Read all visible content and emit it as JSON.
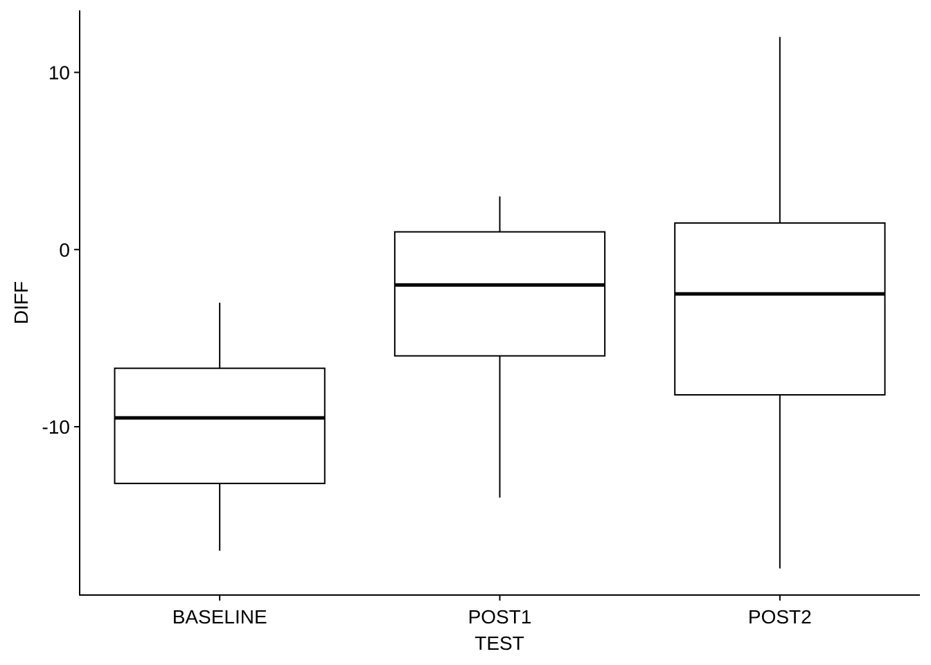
{
  "chart_data": {
    "type": "boxplot",
    "title": "",
    "xlabel": "TEST",
    "ylabel": "DIFF",
    "categories": [
      "BASELINE",
      "POST1",
      "POST2"
    ],
    "boxes": [
      {
        "category": "BASELINE",
        "whisker_low": -17,
        "q1": -13.2,
        "median": -9.5,
        "q3": -6.7,
        "whisker_high": -3
      },
      {
        "category": "POST1",
        "whisker_low": -14,
        "q1": -6,
        "median": -2,
        "q3": 1,
        "whisker_high": 3
      },
      {
        "category": "POST2",
        "whisker_low": -18,
        "q1": -8.2,
        "median": -2.5,
        "q3": 1.5,
        "whisker_high": 12
      }
    ],
    "yticks": [
      10,
      0,
      -10
    ],
    "ylim": [
      -19.5,
      13.5
    ],
    "grid": false,
    "legend": "none"
  }
}
